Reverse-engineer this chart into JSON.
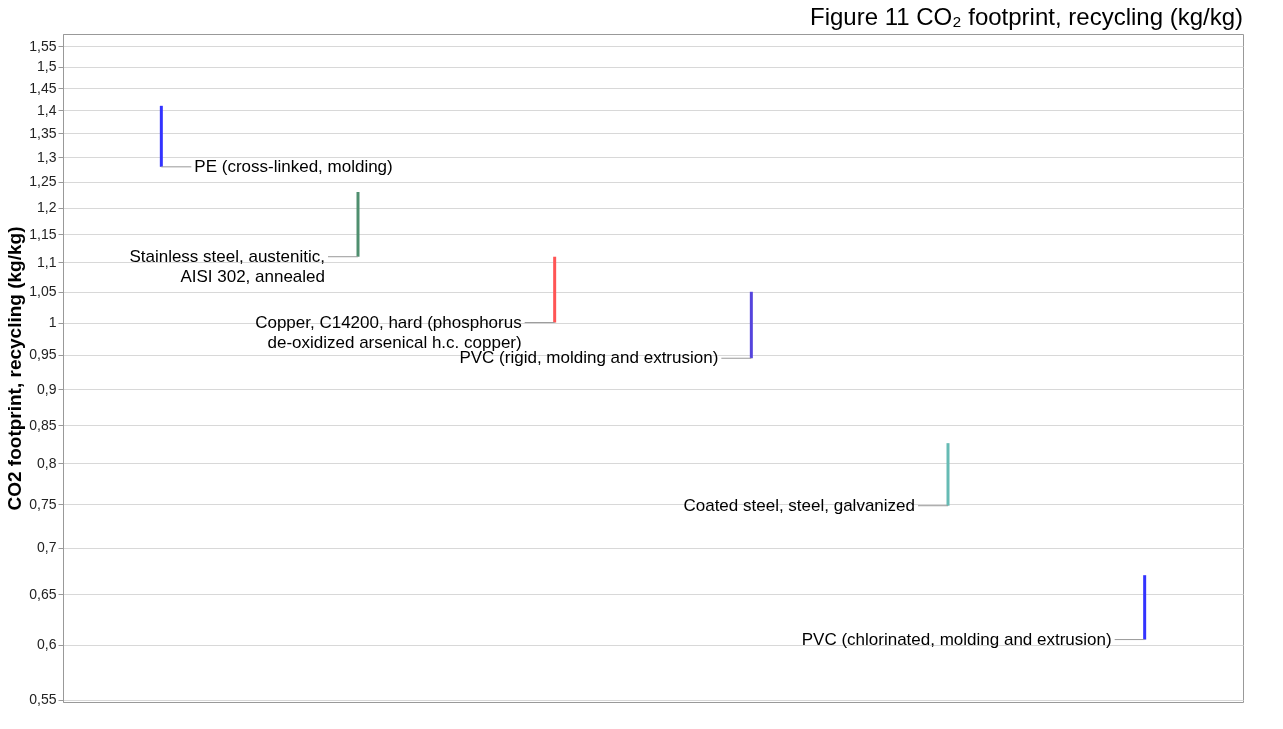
{
  "chart_data": {
    "type": "bar",
    "title": "Figure 11 CO₂ footprint, recycling (kg/kg)",
    "ylabel": "CO2 footprint, recycling (kg/kg)",
    "categories": [
      null,
      null,
      null,
      null,
      null,
      null
    ],
    "base": [
      1.28,
      1.11,
      1.0,
      0.945,
      0.748,
      0.605
    ],
    "values": [
      0.13,
      0.12,
      0.11,
      0.105,
      0.078,
      0.065
    ],
    "colors": [
      "#3333ff",
      "#4f8f6f",
      "#ff5555",
      "#5544dd",
      "#66bbb4",
      "#3333ff"
    ],
    "annotations": [
      "PE (cross-linked, molding)",
      "Stainless steel, austenitic, AISI 302, annealed",
      "Copper, C14200, hard (phosphorus de-oxidized arsenical h.c. copper)",
      "PVC (rigid, molding and extrusion)",
      "Coated steel, steel, galvanized",
      "PVC (chlorinated, molding and extrusion)"
    ],
    "log": true,
    "ylim": [
      0.548,
      1.58
    ],
    "yticks": [
      {
        "value": 0.55,
        "label": "0,55"
      },
      {
        "value": 0.6,
        "label": "0,6"
      },
      {
        "value": 0.65,
        "label": "0,65"
      },
      {
        "value": 0.7,
        "label": "0,7"
      },
      {
        "value": 0.75,
        "label": "0,75"
      },
      {
        "value": 0.8,
        "label": "0,8"
      },
      {
        "value": 0.85,
        "label": "0,85"
      },
      {
        "value": 0.9,
        "label": "0,9"
      },
      {
        "value": 0.95,
        "label": "0,95"
      },
      {
        "value": 1,
        "label": "1"
      },
      {
        "value": 1.05,
        "label": "1,05"
      },
      {
        "value": 1.1,
        "label": "1,1"
      },
      {
        "value": 1.15,
        "label": "1,15"
      },
      {
        "value": 1.2,
        "label": "1,2"
      },
      {
        "value": 1.25,
        "label": "1,25"
      },
      {
        "value": 1.3,
        "label": "1,3"
      },
      {
        "value": 1.35,
        "label": "1,35"
      },
      {
        "value": 1.4,
        "label": "1,4"
      },
      {
        "value": 1.45,
        "label": "1,45"
      },
      {
        "value": 1.5,
        "label": "1,5"
      },
      {
        "value": 1.55,
        "label": "1,55"
      }
    ],
    "grid": "y",
    "tick_labels": "y"
  }
}
